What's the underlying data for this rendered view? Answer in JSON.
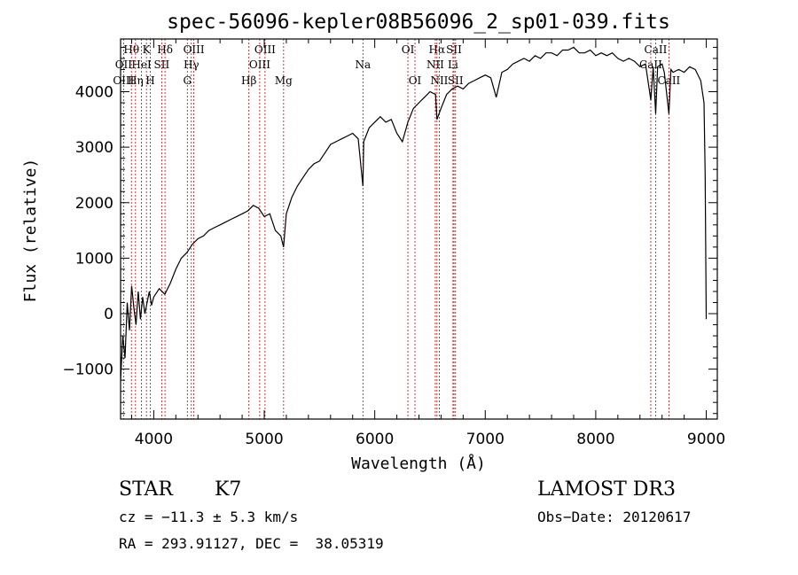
{
  "chart_data": {
    "type": "line",
    "title": "spec-56096-kepler08B56096_2_sp01-039.fits",
    "xlabel": "Wavelength (Å)",
    "ylabel": "Flux (relative)",
    "xlim": [
      3700,
      9100
    ],
    "ylim": [
      -1900,
      4950
    ],
    "xticks": [
      4000,
      5000,
      6000,
      7000,
      8000,
      9000
    ],
    "yticks": [
      -1000,
      0,
      1000,
      2000,
      3000,
      4000
    ],
    "series": [
      {
        "name": "spectrum",
        "x": [
          3700,
          3720,
          3740,
          3760,
          3780,
          3800,
          3820,
          3840,
          3860,
          3880,
          3900,
          3920,
          3940,
          3960,
          3980,
          4000,
          4050,
          4100,
          4150,
          4200,
          4250,
          4300,
          4350,
          4400,
          4450,
          4500,
          4550,
          4600,
          4650,
          4700,
          4750,
          4800,
          4850,
          4900,
          4950,
          5000,
          5050,
          5100,
          5150,
          5175,
          5200,
          5250,
          5300,
          5350,
          5400,
          5450,
          5500,
          5550,
          5600,
          5650,
          5700,
          5750,
          5800,
          5850,
          5893,
          5900,
          5950,
          6000,
          6050,
          6100,
          6150,
          6200,
          6250,
          6300,
          6350,
          6400,
          6450,
          6500,
          6550,
          6563,
          6600,
          6650,
          6700,
          6750,
          6800,
          6850,
          6900,
          6950,
          7000,
          7050,
          7100,
          7150,
          7200,
          7250,
          7300,
          7350,
          7400,
          7450,
          7500,
          7550,
          7600,
          7650,
          7700,
          7750,
          7800,
          7850,
          7900,
          7950,
          8000,
          8050,
          8100,
          8150,
          8200,
          8250,
          8300,
          8350,
          8400,
          8450,
          8498,
          8520,
          8542,
          8560,
          8600,
          8620,
          8662,
          8680,
          8700,
          8750,
          8800,
          8850,
          8900,
          8950,
          8980,
          8990,
          9000
        ],
        "y": [
          -1200,
          -400,
          -800,
          200,
          -300,
          500,
          100,
          -200,
          400,
          -100,
          300,
          0,
          200,
          400,
          150,
          300,
          450,
          350,
          550,
          800,
          1000,
          1100,
          1250,
          1350,
          1400,
          1500,
          1550,
          1600,
          1650,
          1700,
          1750,
          1800,
          1850,
          1950,
          1900,
          1750,
          1800,
          1500,
          1400,
          1200,
          1800,
          2100,
          2300,
          2450,
          2600,
          2700,
          2750,
          2900,
          3050,
          3100,
          3150,
          3200,
          3250,
          3150,
          2300,
          3100,
          3350,
          3450,
          3550,
          3450,
          3500,
          3250,
          3100,
          3450,
          3700,
          3800,
          3900,
          4000,
          3950,
          3500,
          3700,
          3950,
          4050,
          4100,
          4050,
          4150,
          4200,
          4250,
          4300,
          4250,
          3900,
          4350,
          4400,
          4500,
          4550,
          4600,
          4550,
          4650,
          4600,
          4700,
          4700,
          4650,
          4750,
          4750,
          4800,
          4700,
          4700,
          4750,
          4650,
          4700,
          4650,
          4700,
          4600,
          4550,
          4600,
          4550,
          4450,
          4500,
          3850,
          4450,
          3600,
          4450,
          4500,
          4350,
          3600,
          4400,
          4350,
          4400,
          4350,
          4450,
          4400,
          4200,
          3800,
          2500,
          -100
        ]
      }
    ],
    "spectral_lines": [
      {
        "label": "Hθ",
        "x": 3798,
        "row": 0
      },
      {
        "label": "OII",
        "x": 3727,
        "row": 1
      },
      {
        "label": "OIII",
        "x": 3727,
        "row": 2
      },
      {
        "label": "K",
        "x": 3934,
        "row": 0
      },
      {
        "label": "HeI",
        "x": 3889,
        "row": 1
      },
      {
        "label": "Hη",
        "x": 3835,
        "row": 2
      },
      {
        "label": "SII",
        "x": 4072,
        "row": 1
      },
      {
        "label": "H",
        "x": 3969,
        "row": 2
      },
      {
        "label": "Hδ",
        "x": 4102,
        "row": 0
      },
      {
        "label": "OIII",
        "x": 4363,
        "row": 0
      },
      {
        "label": "Hγ",
        "x": 4340,
        "row": 1
      },
      {
        "label": "G",
        "x": 4304,
        "row": 2
      },
      {
        "label": "Hβ",
        "x": 4861,
        "row": 2
      },
      {
        "label": "OIII",
        "x": 5007,
        "row": 0
      },
      {
        "label": "OIII",
        "x": 4959,
        "row": 1
      },
      {
        "label": "Mg",
        "x": 5175,
        "row": 2
      },
      {
        "label": "Na",
        "x": 5893,
        "row": 1
      },
      {
        "label": "OI",
        "x": 6300,
        "row": 0
      },
      {
        "label": "OI",
        "x": 6364,
        "row": 2
      },
      {
        "label": "Hα",
        "x": 6563,
        "row": 0
      },
      {
        "label": "NII",
        "x": 6548,
        "row": 1
      },
      {
        "label": "NII",
        "x": 6584,
        "row": 2
      },
      {
        "label": "SII",
        "x": 6717,
        "row": 0
      },
      {
        "label": "Li",
        "x": 6708,
        "row": 1
      },
      {
        "label": "SII",
        "x": 6731,
        "row": 2
      },
      {
        "label": "CaII",
        "x": 8542,
        "row": 0
      },
      {
        "label": "CaII",
        "x": 8498,
        "row": 1
      },
      {
        "label": "CaII",
        "x": 8662,
        "row": 2
      }
    ]
  },
  "info": {
    "class": "STAR",
    "subclass": "K7",
    "survey": "LAMOST DR3",
    "cz": "cz = −11.3 ± 5.3 km/s",
    "obs_date": "Obs−Date: 20120617",
    "coords": "RA = 293.91127, DEC =  38.05319"
  },
  "colors": {
    "spectrum": "#000000",
    "line_marker": "#cc0000"
  }
}
